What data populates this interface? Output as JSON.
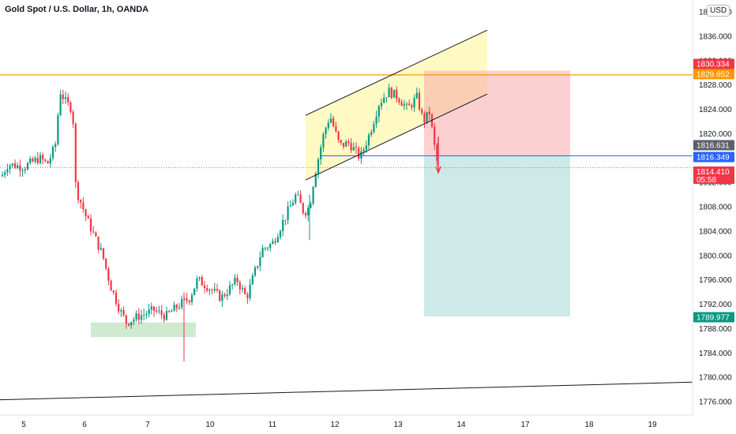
{
  "chart_data": {
    "type": "candlestick",
    "title": "Gold Spot / U.S. Dollar, 1h, OANDA",
    "currency": "USD",
    "y_axis": {
      "ticks": [
        "1776.000",
        "1780.000",
        "1784.000",
        "1788.000",
        "1792.000",
        "1796.000",
        "1800.000",
        "1804.000",
        "1808.000",
        "1812.000",
        "1816.000",
        "1820.000",
        "1824.000",
        "1828.000",
        "1832.000",
        "1836.000",
        "1840.000"
      ],
      "range": [
        1774.5,
        1841.5
      ]
    },
    "x_axis": {
      "ticks": [
        "5",
        "6",
        "7",
        "10",
        "11",
        "12",
        "13",
        "14",
        "17",
        "18",
        "19"
      ]
    },
    "price_labels": [
      {
        "value": "1830.334",
        "color": "#f23645"
      },
      {
        "value": "1829.652",
        "color": "#ff9800"
      },
      {
        "value": "1816.631",
        "color": "#5d606b"
      },
      {
        "value": "1816.349",
        "color": "#2962ff"
      },
      {
        "value": "1814.410",
        "sub": "05:58",
        "color": "#f23645"
      },
      {
        "value": "1789.977",
        "color": "#089981"
      }
    ],
    "levels": {
      "resistance": 1829.652,
      "entry": 1816.349,
      "current": 1814.41,
      "stop": 1830.334,
      "target": 1789.977
    },
    "colors": {
      "up": "#089981",
      "down": "#f23645",
      "resistance_line": "#ff9800",
      "entry_line": "#2962ff",
      "channel_fill": "#fff59d",
      "stop_zone": "#f7a9a9",
      "target_zone": "#b2dfdb",
      "support_zone": "#c8e6c9"
    }
  }
}
